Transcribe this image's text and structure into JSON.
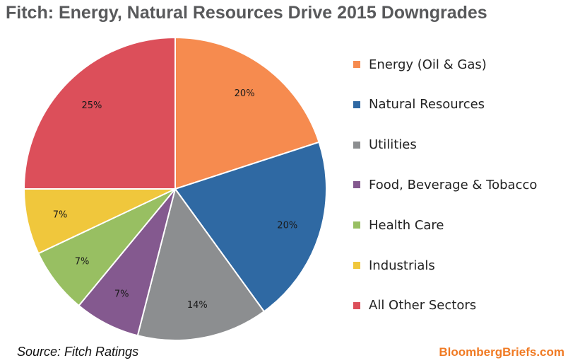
{
  "chart_data": {
    "type": "pie",
    "title": "Fitch: Energy, Natural Resources Drive 2015 Downgrades",
    "slices": [
      {
        "name": "Energy (Oil & Gas)",
        "value": 20,
        "label": "20%",
        "color": "#f68b4f"
      },
      {
        "name": "Natural Resources",
        "value": 20,
        "label": "20%",
        "color": "#2f69a3"
      },
      {
        "name": "Utilities",
        "value": 14,
        "label": "14%",
        "color": "#8c8e90"
      },
      {
        "name": "Food, Beverage & Tobacco",
        "value": 7,
        "label": "7%",
        "color": "#84598f"
      },
      {
        "name": "Health Care",
        "value": 7,
        "label": "7%",
        "color": "#98bf62"
      },
      {
        "name": "Industrials",
        "value": 7,
        "label": "7%",
        "color": "#f0c73c"
      },
      {
        "name": "All Other Sectors",
        "value": 25,
        "label": "25%",
        "color": "#dc4f5a"
      }
    ],
    "legend_position": "right"
  },
  "source": "Source: Fitch Ratings",
  "brand": "BloombergBriefs.com"
}
